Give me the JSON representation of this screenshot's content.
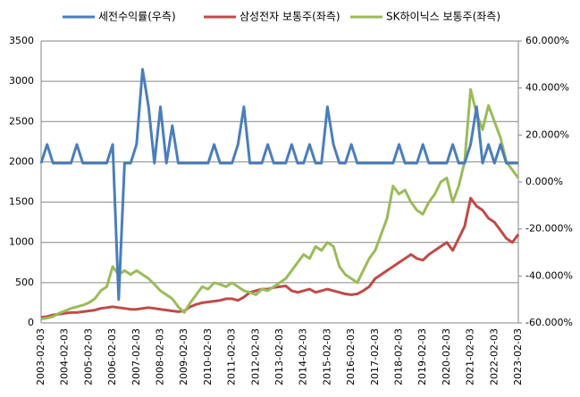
{
  "chart_data": {
    "type": "line",
    "categories": [
      "2003-02-03",
      null,
      null,
      null,
      "2004-02-03",
      null,
      null,
      null,
      "2005-02-03",
      null,
      null,
      null,
      "2006-02-03",
      null,
      null,
      null,
      "2007-02-03",
      null,
      null,
      null,
      "2008-02-03",
      null,
      null,
      null,
      "2009-02-03",
      null,
      null,
      null,
      "2010-02-03",
      null,
      null,
      null,
      "2011-02-03",
      null,
      null,
      null,
      "2012-02-03",
      null,
      null,
      null,
      "2013-02-03",
      null,
      null,
      null,
      "2014-02-03",
      null,
      null,
      null,
      "2015-02-03",
      null,
      null,
      null,
      "2016-02-03",
      null,
      null,
      null,
      "2017-02-03",
      null,
      null,
      null,
      "2018-02-03",
      null,
      null,
      null,
      "2019-02-03",
      null,
      null,
      null,
      "2020-02-03",
      null,
      null,
      null,
      "2021-02-03",
      null,
      null,
      null,
      "2022-02-03",
      null,
      null,
      null,
      "2023-02-03"
    ],
    "series": [
      {
        "name": "세전수익률(우측)",
        "color": "#4a7ebb",
        "axis": "y2",
        "values": [
          8,
          16,
          8,
          8,
          8,
          8,
          16,
          8,
          8,
          8,
          8,
          8,
          16,
          -50,
          8,
          8,
          16,
          48,
          32,
          8,
          32,
          8,
          24,
          8,
          8,
          8,
          8,
          8,
          8,
          16,
          8,
          8,
          8,
          16,
          32,
          8,
          8,
          8,
          16,
          8,
          8,
          8,
          16,
          8,
          8,
          16,
          8,
          8,
          32,
          16,
          8,
          8,
          16,
          8,
          8,
          8,
          8,
          8,
          8,
          8,
          16,
          8,
          8,
          8,
          16,
          8,
          8,
          8,
          8,
          16,
          8,
          8,
          16,
          32,
          8,
          16,
          8,
          16,
          8,
          8,
          8
        ]
      },
      {
        "name": "삼성전자 보통주(좌측)",
        "color": "#be4b48",
        "values": [
          70,
          80,
          100,
          110,
          120,
          130,
          130,
          140,
          150,
          160,
          180,
          190,
          200,
          190,
          180,
          170,
          170,
          180,
          190,
          180,
          170,
          160,
          150,
          140,
          150,
          200,
          230,
          250,
          260,
          270,
          280,
          300,
          300,
          280,
          320,
          380,
          400,
          420,
          420,
          440,
          450,
          460,
          400,
          380,
          400,
          420,
          380,
          400,
          420,
          400,
          380,
          360,
          350,
          360,
          400,
          450,
          550,
          600,
          650,
          700,
          750,
          800,
          850,
          800,
          780,
          850,
          900,
          950,
          1000,
          900,
          1050,
          1200,
          1550,
          1450,
          1400,
          1300,
          1250,
          1150,
          1050,
          1000,
          1100
        ]
      },
      {
        "name": "SK하이닉스 보통주(좌측)",
        "color": "#9bbb59",
        "values": [
          50,
          60,
          80,
          120,
          150,
          180,
          200,
          220,
          250,
          300,
          400,
          450,
          700,
          600,
          650,
          600,
          650,
          600,
          550,
          480,
          400,
          350,
          300,
          200,
          130,
          250,
          350,
          450,
          420,
          500,
          480,
          450,
          500,
          450,
          400,
          380,
          350,
          420,
          400,
          450,
          500,
          550,
          650,
          750,
          850,
          800,
          950,
          900,
          1000,
          950,
          700,
          600,
          550,
          500,
          650,
          800,
          900,
          1100,
          1300,
          1700,
          1600,
          1650,
          1500,
          1400,
          1350,
          1500,
          1600,
          1750,
          1800,
          1500,
          1700,
          2000,
          2900,
          2600,
          2400,
          2700,
          2500,
          2300,
          2000,
          1900,
          1800
        ]
      }
    ],
    "ylim": [
      0,
      3500
    ],
    "yticks": [
      0,
      500,
      1000,
      1500,
      2000,
      2500,
      3000,
      3500
    ],
    "y2lim": [
      -60,
      60
    ],
    "y2ticks": [
      {
        "value": -60,
        "label": "-60.000%"
      },
      {
        "value": -40,
        "label": "-40.000%"
      },
      {
        "value": -20,
        "label": "-20.000%"
      },
      {
        "value": 0,
        "label": "0.000%"
      },
      {
        "value": 20,
        "label": "20.000%"
      },
      {
        "value": 40,
        "label": "40.000%"
      },
      {
        "value": 60,
        "label": "60.000%"
      }
    ],
    "grid": true,
    "legend": "top"
  }
}
